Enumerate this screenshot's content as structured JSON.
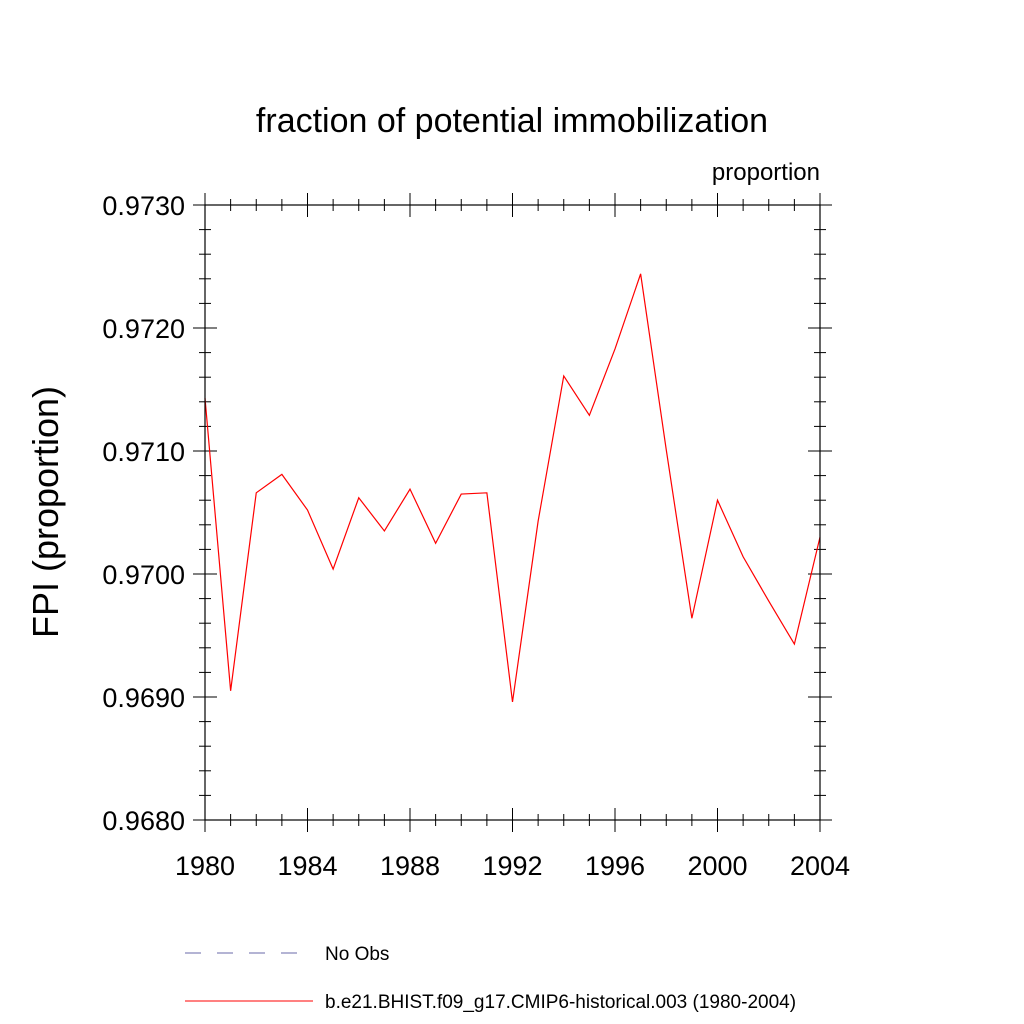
{
  "chart_data": {
    "type": "line",
    "title": "fraction of potential immobilization",
    "units_label": "proportion",
    "ylabel": "FPI  (proportion)",
    "xlabel": "",
    "xlim": [
      1980,
      2004
    ],
    "ylim": [
      0.968,
      0.973
    ],
    "x_ticks": [
      "1980",
      "1984",
      "1988",
      "1992",
      "1996",
      "2000",
      "2004"
    ],
    "y_ticks": [
      "0.9680",
      "0.9690",
      "0.9700",
      "0.9710",
      "0.9720",
      "0.9730"
    ],
    "grid": false,
    "legend_placement": "bottom",
    "series": [
      {
        "name": "b.e21.BHIST.f09_g17.CMIP6-historical.003 (1980-2004)",
        "color": "#ff0000",
        "style": "solid",
        "x": [
          1980,
          1981,
          1982,
          1983,
          1984,
          1985,
          1986,
          1987,
          1988,
          1989,
          1990,
          1991,
          1992,
          1993,
          1994,
          1995,
          1996,
          1997,
          1998,
          1999,
          2000,
          2001,
          2002,
          2003,
          2004
        ],
        "values": [
          0.97143,
          0.96905,
          0.97066,
          0.97081,
          0.97052,
          0.97004,
          0.97062,
          0.97035,
          0.97069,
          0.97025,
          0.97065,
          0.97066,
          0.96896,
          0.97043,
          0.97161,
          0.97129,
          0.97183,
          0.97244,
          0.97101,
          0.96964,
          0.9706,
          0.97014,
          0.96978,
          0.96943,
          0.9703
        ]
      }
    ],
    "legend": [
      {
        "label": "No Obs",
        "color": "#6a6aa8",
        "style": "dashed"
      },
      {
        "label": "b.e21.BHIST.f09_g17.CMIP6-historical.003 (1980-2004)",
        "color": "#ff0000",
        "style": "solid"
      }
    ]
  }
}
